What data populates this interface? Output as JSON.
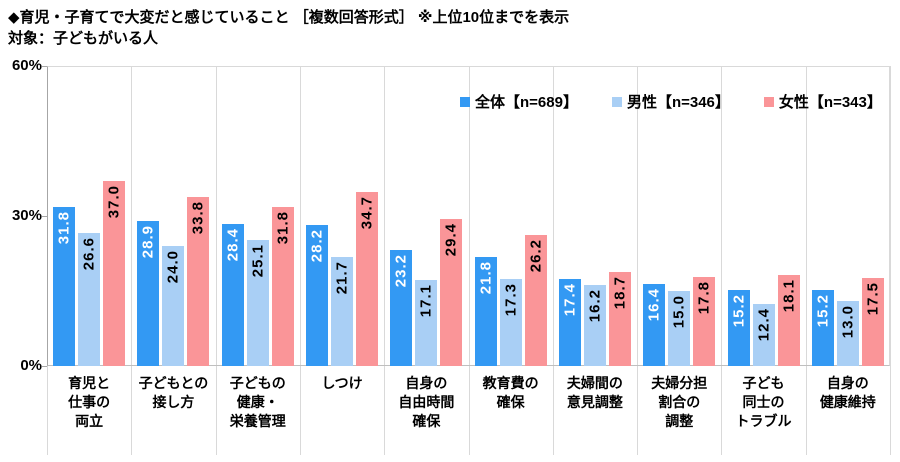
{
  "chart_data": {
    "type": "bar",
    "title": "◆育児・子育てで大変だと感じていること ［複数回答形式］ ※上位10位までを表示",
    "subtitle": "対象：子どもがいる人",
    "ylim": [
      0,
      60
    ],
    "yticks": [
      "60%",
      "30%",
      "0%"
    ],
    "grid": "vertical-category-separators",
    "legend_position": "top-right-inside",
    "value_label_style": "rotated-90-inside-bar-top",
    "categories": [
      "育児と\n仕事の\n両立",
      "子どもとの\n接し方",
      "子どもの\n健康・\n栄養管理",
      "しつけ",
      "自身の\n自由時間\n確保",
      "教育費の\n確保",
      "夫婦間の\n意見調整",
      "夫婦分担\n割合の\n調整",
      "子ども\n同士の\nトラブル",
      "自身の\n健康維持"
    ],
    "series": [
      {
        "name": "全体【n=689】",
        "color": "#3399F3",
        "label_color": "#FFFFFF",
        "values": [
          31.8,
          28.9,
          28.4,
          28.2,
          23.2,
          21.8,
          17.4,
          16.4,
          15.2,
          15.2
        ]
      },
      {
        "name": "男性【n=346】",
        "color": "#A9CFF5",
        "label_color": "#000000",
        "values": [
          26.6,
          24.0,
          25.1,
          21.7,
          17.1,
          17.3,
          16.2,
          15.0,
          12.4,
          13.0
        ]
      },
      {
        "name": "女性【n=343】",
        "color": "#FA9598",
        "label_color": "#000000",
        "values": [
          37.0,
          33.8,
          31.8,
          34.7,
          29.4,
          26.2,
          18.7,
          17.8,
          18.1,
          17.5
        ]
      }
    ]
  },
  "colors": {
    "axis": "#A6A6A6",
    "separator": "#D9D9D9",
    "background": "#FFFFFF",
    "text": "#000000"
  }
}
